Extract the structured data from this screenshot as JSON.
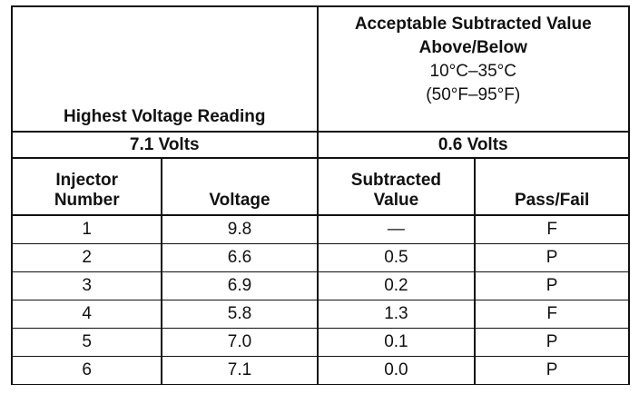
{
  "header": {
    "highest_label": "Highest Voltage Reading",
    "acceptable_label": "Acceptable Subtracted Value Above/Below",
    "temp_c": "10°C–35°C",
    "temp_f": "(50°F–95°F)",
    "highest_value": "7.1 Volts",
    "acceptable_value": "0.6 Volts"
  },
  "table": {
    "columns": [
      "Injector Number",
      "Voltage",
      "Subtracted Value",
      "Pass/Fail"
    ],
    "rows": [
      [
        "1",
        "9.8",
        "—",
        "F"
      ],
      [
        "2",
        "6.6",
        "0.5",
        "P"
      ],
      [
        "3",
        "6.9",
        "0.2",
        "P"
      ],
      [
        "4",
        "5.8",
        "1.3",
        "F"
      ],
      [
        "5",
        "7.0",
        "0.1",
        "P"
      ],
      [
        "6",
        "7.1",
        "0.0",
        "P"
      ]
    ]
  }
}
